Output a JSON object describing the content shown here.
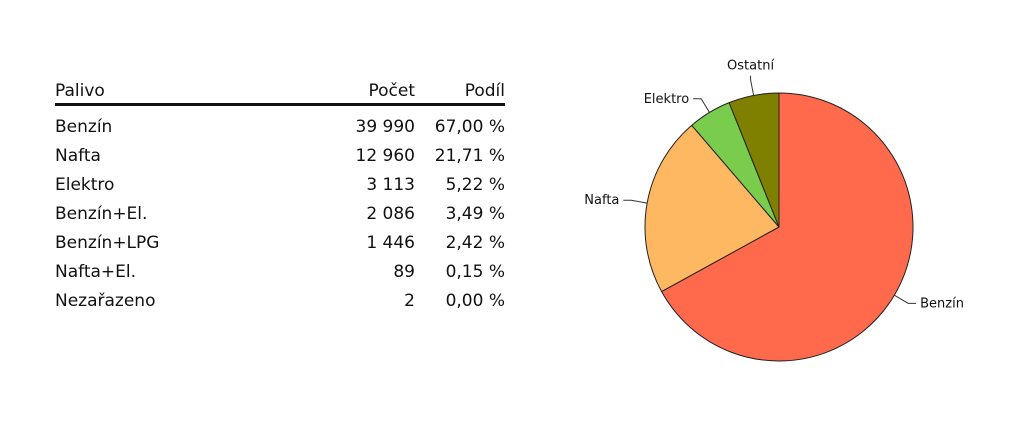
{
  "table": {
    "headers": {
      "name": "Palivo",
      "count": "Počet",
      "share": "Podíl"
    },
    "rows": [
      {
        "name": "Benzín",
        "count": "39 990",
        "share": "67,00 %"
      },
      {
        "name": "Nafta",
        "count": "12 960",
        "share": "21,71 %"
      },
      {
        "name": "Elektro",
        "count": "3 113",
        "share": "5,22 %"
      },
      {
        "name": "Benzín+El.",
        "count": "2 086",
        "share": "3,49 %"
      },
      {
        "name": "Benzín+LPG",
        "count": "1 446",
        "share": "2,42 %"
      },
      {
        "name": "Nafta+El.",
        "count": "89",
        "share": "0,15 %"
      },
      {
        "name": "Nezařazeno",
        "count": "2",
        "share": "0,00 %"
      }
    ]
  },
  "chart_data": {
    "type": "pie",
    "categories": [
      "Benzín",
      "Nafta",
      "Elektro",
      "Ostatní"
    ],
    "values": [
      67.0,
      21.71,
      5.22,
      6.07
    ],
    "colors": [
      "#ff6a4d",
      "#ffb862",
      "#7acc4c",
      "#808000"
    ]
  }
}
